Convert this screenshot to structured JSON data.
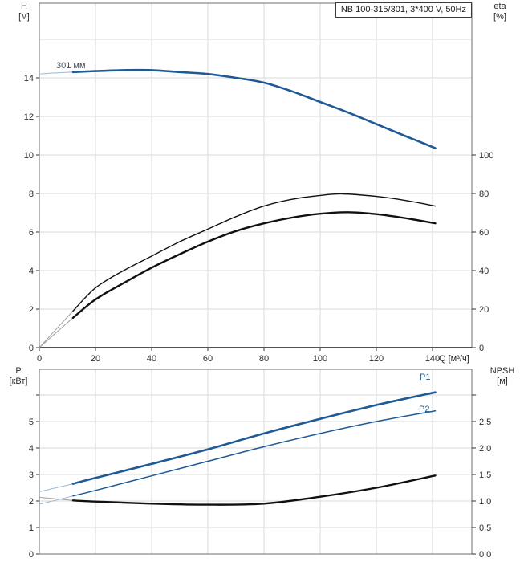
{
  "labels": {
    "title": "NB 100-315/301, 3*400 V, 50Hz",
    "h": "H",
    "h_unit": "[м]",
    "eta": "eta",
    "eta_unit": "[%]",
    "p": "P",
    "p_unit": "[кВт]",
    "npsh": "NPSH",
    "npsh_unit": "[м]",
    "q_axis": "Q [м³/ч]",
    "head_curve": "301 мм",
    "p1": "P1",
    "p2": "P2"
  },
  "colors": {
    "blue": "#1e5a96",
    "lead_blue": "#9db9d5",
    "black": "#111111",
    "lead_gray": "#a0a0a0",
    "grid": "#d8d8d8",
    "frame": "#6e6e6e",
    "axis_dark": "#1a1a1a",
    "text": "#2b2b2b"
  },
  "chart_data": [
    {
      "type": "line",
      "id": "head-and-efficiency",
      "title": "NB 100-315/301, 3*400 V, 50Hz",
      "x_axis": {
        "label": "Q [м³/ч]",
        "min": 0,
        "max": 154,
        "tick_values": [
          0,
          20,
          40,
          60,
          80,
          100,
          120,
          140
        ],
        "tick_labels": [
          "0",
          "20",
          "40",
          "60",
          "80",
          "100",
          "120",
          "140"
        ],
        "grid_values": [
          20,
          40,
          60,
          80,
          100,
          120,
          140
        ]
      },
      "left_axis": {
        "label": "H [м]",
        "min": 0,
        "max": 17.875,
        "tick_values": [
          0,
          2,
          4,
          6,
          8,
          10,
          12,
          14
        ],
        "tick_labels": [
          "0",
          "2",
          "4",
          "6",
          "8",
          "10",
          "12",
          "14"
        ],
        "grid_values": [
          2,
          4,
          6,
          8,
          10,
          12,
          14,
          16
        ]
      },
      "right_axis": {
        "label": "eta [%]",
        "min": 0,
        "max": 178.75,
        "tick_values": [
          0,
          20,
          40,
          60,
          80,
          100
        ],
        "tick_labels": [
          "0",
          "20",
          "40",
          "60",
          "80",
          "100"
        ]
      },
      "series": [
        {
          "name": "head-curve-301mm",
          "label": "301 мм",
          "axis": "left",
          "style": "blue_thick",
          "split_q": 12,
          "points": [
            [
              0,
              14.2
            ],
            [
              5,
              14.25
            ],
            [
              12,
              14.3
            ],
            [
              20,
              14.35
            ],
            [
              30,
              14.4
            ],
            [
              40,
              14.4
            ],
            [
              50,
              14.3
            ],
            [
              60,
              14.2
            ],
            [
              70,
              14.0
            ],
            [
              80,
              13.75
            ],
            [
              90,
              13.3
            ],
            [
              100,
              12.75
            ],
            [
              110,
              12.2
            ],
            [
              120,
              11.6
            ],
            [
              130,
              11.0
            ],
            [
              136,
              10.65
            ],
            [
              141,
              10.35
            ]
          ]
        },
        {
          "name": "efficiency-curve-pump",
          "axis": "right",
          "style": "black_thin",
          "split_q": 12,
          "points": [
            [
              0,
              0
            ],
            [
              5,
              8
            ],
            [
              12,
              19
            ],
            [
              20,
              31
            ],
            [
              30,
              40
            ],
            [
              40,
              47.5
            ],
            [
              50,
              55
            ],
            [
              60,
              61.5
            ],
            [
              70,
              68
            ],
            [
              80,
              73.5
            ],
            [
              90,
              77
            ],
            [
              100,
              79
            ],
            [
              108,
              79.8
            ],
            [
              120,
              78.5
            ],
            [
              130,
              76.5
            ],
            [
              141,
              73.5
            ]
          ]
        },
        {
          "name": "efficiency-curve-pump-motor",
          "axis": "right",
          "style": "black_thick",
          "split_q": 12,
          "points": [
            [
              0,
              0
            ],
            [
              5,
              6.5
            ],
            [
              12,
              15.5
            ],
            [
              20,
              25
            ],
            [
              30,
              33.5
            ],
            [
              40,
              41.5
            ],
            [
              50,
              48.5
            ],
            [
              60,
              55
            ],
            [
              70,
              60.5
            ],
            [
              80,
              64.5
            ],
            [
              90,
              67.5
            ],
            [
              100,
              69.5
            ],
            [
              110,
              70.3
            ],
            [
              120,
              69.3
            ],
            [
              130,
              67.3
            ],
            [
              141,
              64.5
            ]
          ]
        }
      ]
    },
    {
      "type": "line",
      "id": "power-and-npsh",
      "x_axis": {
        "label": "",
        "min": 0,
        "max": 154,
        "tick_values": [],
        "tick_labels": [],
        "grid_values": [
          20,
          40,
          60,
          80,
          100,
          120,
          140
        ]
      },
      "left_axis": {
        "label": "P [кВт]",
        "min": 0,
        "max": 6.9697,
        "tick_values": [
          0,
          1,
          2,
          3,
          4,
          5,
          6
        ],
        "tick_labels": [
          "0",
          "1",
          "2",
          "3",
          "4",
          "5",
          ""
        ],
        "grid_values": [
          1,
          2,
          3,
          4,
          5,
          6
        ]
      },
      "right_axis": {
        "label": "NPSH [м]",
        "min": 0,
        "max": 3.4848,
        "tick_values": [
          0,
          0.5,
          1.0,
          1.5,
          2.0,
          2.5,
          3.0
        ],
        "tick_labels": [
          "0.0",
          "0.5",
          "1.0",
          "1.5",
          "2.0",
          "2.5",
          ""
        ]
      },
      "series": [
        {
          "name": "p1-power-curve",
          "label": "P1",
          "axis": "left",
          "style": "blue_thick",
          "split_q": 12,
          "points": [
            [
              0,
              2.35
            ],
            [
              12,
              2.65
            ],
            [
              20,
              2.87
            ],
            [
              40,
              3.4
            ],
            [
              60,
              3.95
            ],
            [
              80,
              4.55
            ],
            [
              100,
              5.1
            ],
            [
              120,
              5.62
            ],
            [
              141,
              6.1
            ]
          ]
        },
        {
          "name": "p2-power-curve",
          "label": "P2",
          "axis": "left",
          "style": "blue_thin",
          "split_q": 12,
          "points": [
            [
              0,
              1.88
            ],
            [
              12,
              2.19
            ],
            [
              20,
              2.4
            ],
            [
              40,
              2.95
            ],
            [
              60,
              3.5
            ],
            [
              80,
              4.05
            ],
            [
              100,
              4.55
            ],
            [
              120,
              5.0
            ],
            [
              141,
              5.4
            ]
          ]
        },
        {
          "name": "npsh-curve",
          "axis": "right",
          "style": "black_thick",
          "split_q": 12,
          "points": [
            [
              0,
              1.07
            ],
            [
              12,
              1.01
            ],
            [
              20,
              0.99
            ],
            [
              40,
              0.95
            ],
            [
              60,
              0.93
            ],
            [
              80,
              0.95
            ],
            [
              100,
              1.08
            ],
            [
              120,
              1.25
            ],
            [
              141,
              1.48
            ]
          ]
        }
      ]
    }
  ]
}
